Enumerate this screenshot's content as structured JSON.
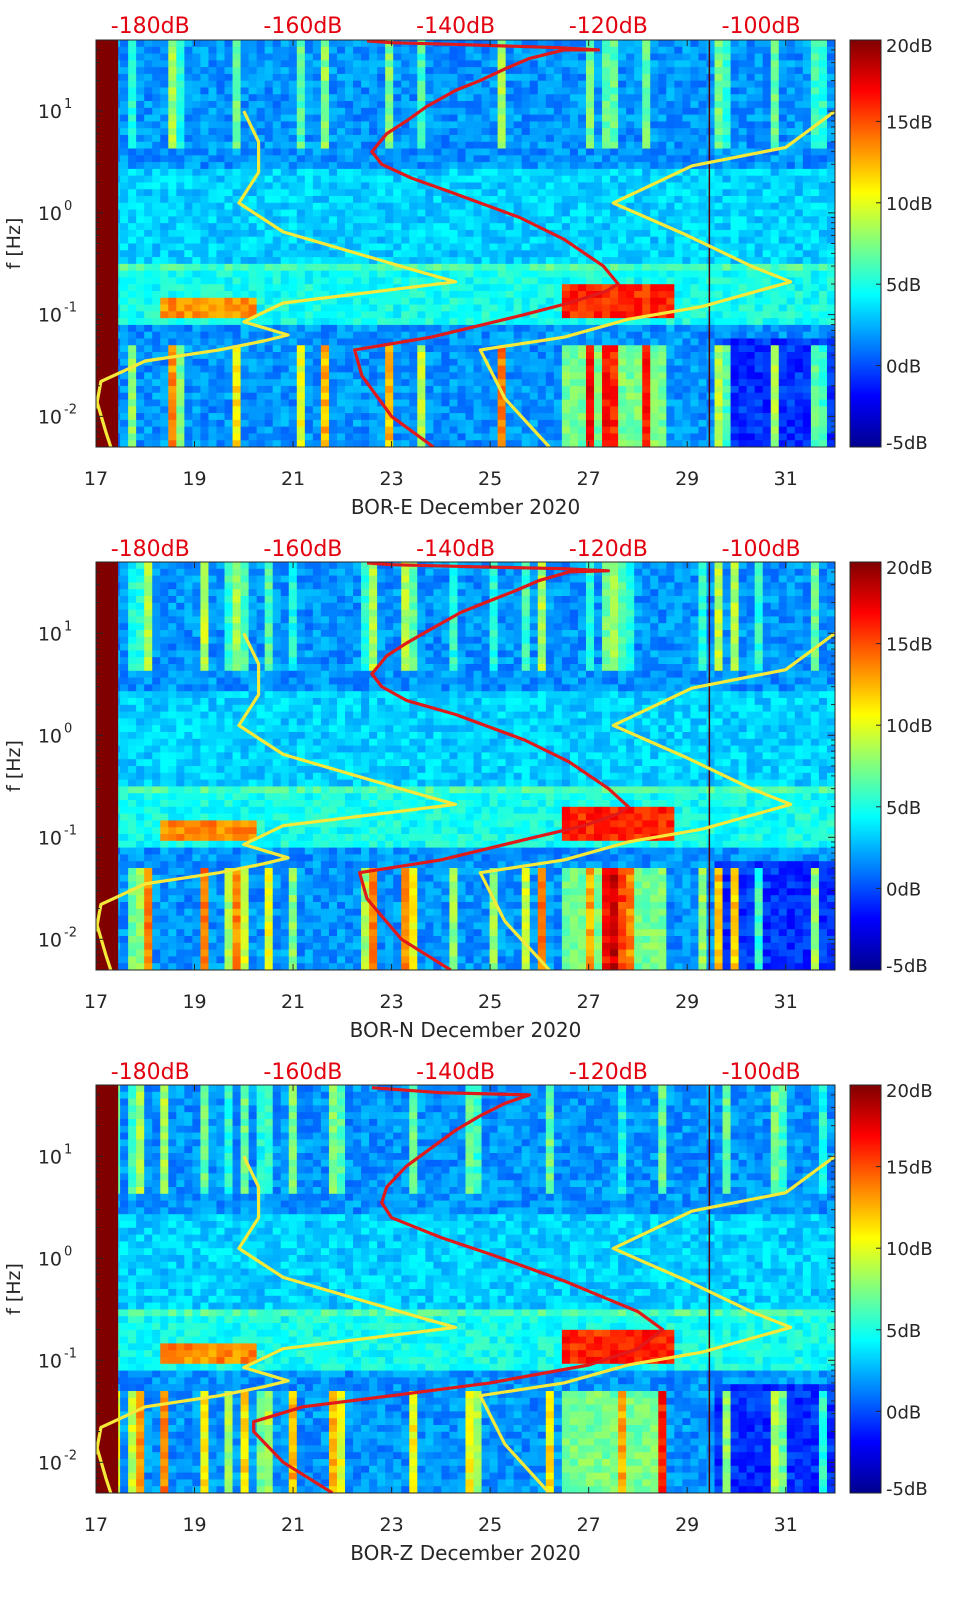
{
  "colors": {
    "red_curve": "#e0191b",
    "yellow_curve": "#f5e93a",
    "top_label": "#e3000f",
    "axis_text": "#262626",
    "colormap": [
      "#00008f",
      "#0000ff",
      "#0080ff",
      "#00ffff",
      "#80ff80",
      "#ffff00",
      "#ff8000",
      "#ff0000",
      "#800000"
    ]
  },
  "chart_data": [
    {
      "type": "heatmap",
      "title": "",
      "xlabel": "BOR-E December 2020",
      "ylabel": "f [Hz]",
      "xlim": [
        17,
        32
      ],
      "ylim": [
        0.005,
        50
      ],
      "yscale": "log",
      "x_ticks": [
        17,
        19,
        21,
        23,
        25,
        27,
        29,
        31
      ],
      "x_tick_labels": [
        "17",
        "19",
        "21",
        "23",
        "25",
        "27",
        "29",
        "31"
      ],
      "y_ticks": [
        0.01,
        0.1,
        1,
        10
      ],
      "y_tick_labels": [
        {
          "base": "10",
          "exp": "-2"
        },
        {
          "base": "10",
          "exp": "-1"
        },
        {
          "base": "10",
          "exp": "0"
        },
        {
          "base": "10",
          "exp": "1"
        }
      ],
      "top_axis_labels": [
        {
          "label": "-180dB",
          "x": 18.1
        },
        {
          "label": "-160dB",
          "x": 21.2
        },
        {
          "label": "-140dB",
          "x": 24.3
        },
        {
          "label": "-120dB",
          "x": 27.4
        },
        {
          "label": "-100dB",
          "x": 30.5
        }
      ],
      "colorbar": {
        "ticks": [
          -5,
          0,
          5,
          10,
          15,
          20
        ],
        "labels": [
          "-5dB",
          "0dB",
          "5dB",
          "10dB",
          "15dB",
          "20dB"
        ],
        "range": [
          -5,
          20
        ]
      },
      "series": [
        {
          "name": "red spectral curve",
          "color": "red",
          "points": [
            [
              23.85,
              0.005
            ],
            [
              23.0,
              0.01
            ],
            [
              22.4,
              0.025
            ],
            [
              22.25,
              0.045
            ],
            [
              23.8,
              0.06
            ],
            [
              25.7,
              0.1
            ],
            [
              26.6,
              0.13
            ],
            [
              27.35,
              0.17
            ],
            [
              27.6,
              0.2
            ],
            [
              27.3,
              0.3
            ],
            [
              26.5,
              0.55
            ],
            [
              25.6,
              0.9
            ],
            [
              24.2,
              1.6
            ],
            [
              23.4,
              2.2
            ],
            [
              22.8,
              3
            ],
            [
              22.6,
              4
            ],
            [
              22.9,
              6
            ],
            [
              23.3,
              8
            ],
            [
              23.7,
              11
            ],
            [
              24.3,
              16
            ],
            [
              24.8,
              20
            ],
            [
              25.3,
              26
            ],
            [
              25.8,
              33
            ],
            [
              26.5,
              40
            ],
            [
              27.2,
              40
            ],
            [
              26.4,
              42
            ],
            [
              24.5,
              45
            ],
            [
              23.0,
              47
            ],
            [
              22.5,
              49
            ]
          ]
        },
        {
          "name": "yellow upper curve",
          "color": "yellow",
          "points": [
            [
              17.0,
              0.012
            ],
            [
              17.1,
              0.022
            ],
            [
              18.0,
              0.035
            ],
            [
              19.5,
              0.045
            ],
            [
              20.4,
              0.055
            ],
            [
              20.9,
              0.063
            ],
            [
              20.0,
              0.085
            ],
            [
              20.8,
              0.13
            ],
            [
              24.3,
              0.21
            ],
            [
              23.5,
              0.27
            ],
            [
              20.8,
              0.65
            ],
            [
              19.9,
              1.25
            ],
            [
              20.3,
              2.5
            ],
            [
              20.3,
              5
            ],
            [
              20.0,
              10
            ]
          ]
        },
        {
          "name": "yellow lower curve",
          "color": "yellow",
          "points": [
            [
              17.0,
              0.015
            ],
            [
              17.2,
              0.007
            ],
            [
              17.3,
              0.005
            ]
          ]
        },
        {
          "name": "yellow right curve",
          "color": "yellow",
          "points": [
            [
              26.2,
              0.005
            ],
            [
              25.3,
              0.015
            ],
            [
              24.8,
              0.045
            ],
            [
              26.5,
              0.06
            ],
            [
              27.8,
              0.09
            ],
            [
              29.3,
              0.12
            ],
            [
              31.1,
              0.21
            ],
            [
              30.3,
              0.3
            ],
            [
              29.0,
              0.6
            ],
            [
              27.5,
              1.25
            ],
            [
              29.1,
              2.9
            ],
            [
              31.0,
              4.4
            ],
            [
              32.0,
              10
            ]
          ]
        }
      ]
    },
    {
      "type": "heatmap",
      "title": "",
      "xlabel": "BOR-N December 2020",
      "ylabel": "f [Hz]",
      "xlim": [
        17,
        32
      ],
      "ylim": [
        0.005,
        50
      ],
      "yscale": "log",
      "x_ticks": [
        17,
        19,
        21,
        23,
        25,
        27,
        29,
        31
      ],
      "x_tick_labels": [
        "17",
        "19",
        "21",
        "23",
        "25",
        "27",
        "29",
        "31"
      ],
      "y_ticks": [
        0.01,
        0.1,
        1,
        10
      ],
      "y_tick_labels": [
        {
          "base": "10",
          "exp": "-2"
        },
        {
          "base": "10",
          "exp": "-1"
        },
        {
          "base": "10",
          "exp": "0"
        },
        {
          "base": "10",
          "exp": "1"
        }
      ],
      "top_axis_labels": [
        {
          "label": "-180dB",
          "x": 18.1
        },
        {
          "label": "-160dB",
          "x": 21.2
        },
        {
          "label": "-140dB",
          "x": 24.3
        },
        {
          "label": "-120dB",
          "x": 27.4
        },
        {
          "label": "-100dB",
          "x": 30.5
        }
      ],
      "colorbar": {
        "ticks": [
          -5,
          0,
          5,
          10,
          15,
          20
        ],
        "labels": [
          "-5dB",
          "0dB",
          "5dB",
          "10dB",
          "15dB",
          "20dB"
        ],
        "range": [
          -5,
          20
        ]
      },
      "series": [
        {
          "name": "red spectral curve",
          "color": "red",
          "points": [
            [
              24.2,
              0.005
            ],
            [
              23.2,
              0.01
            ],
            [
              22.5,
              0.025
            ],
            [
              22.35,
              0.045
            ],
            [
              24.0,
              0.06
            ],
            [
              25.9,
              0.1
            ],
            [
              26.9,
              0.13
            ],
            [
              27.6,
              0.17
            ],
            [
              27.8,
              0.2
            ],
            [
              27.4,
              0.3
            ],
            [
              26.6,
              0.55
            ],
            [
              25.7,
              0.9
            ],
            [
              24.3,
              1.6
            ],
            [
              23.3,
              2.2
            ],
            [
              22.8,
              3
            ],
            [
              22.6,
              4
            ],
            [
              22.9,
              6
            ],
            [
              23.3,
              8
            ],
            [
              23.8,
              11
            ],
            [
              24.4,
              16
            ],
            [
              24.9,
              20
            ],
            [
              25.5,
              26
            ],
            [
              26.0,
              33
            ],
            [
              26.6,
              40
            ],
            [
              27.4,
              41
            ],
            [
              26.5,
              43
            ],
            [
              24.6,
              45
            ],
            [
              23.0,
              47
            ],
            [
              22.5,
              49
            ]
          ]
        },
        {
          "name": "yellow upper curve",
          "color": "yellow",
          "points": [
            [
              17.0,
              0.012
            ],
            [
              17.1,
              0.022
            ],
            [
              18.0,
              0.035
            ],
            [
              19.5,
              0.045
            ],
            [
              20.4,
              0.055
            ],
            [
              20.9,
              0.063
            ],
            [
              20.0,
              0.085
            ],
            [
              20.8,
              0.13
            ],
            [
              24.3,
              0.21
            ],
            [
              23.5,
              0.27
            ],
            [
              20.8,
              0.65
            ],
            [
              19.9,
              1.25
            ],
            [
              20.3,
              2.5
            ],
            [
              20.3,
              5
            ],
            [
              20.0,
              10
            ]
          ]
        },
        {
          "name": "yellow lower curve",
          "color": "yellow",
          "points": [
            [
              17.0,
              0.015
            ],
            [
              17.2,
              0.007
            ],
            [
              17.3,
              0.005
            ]
          ]
        },
        {
          "name": "yellow right curve",
          "color": "yellow",
          "points": [
            [
              26.2,
              0.005
            ],
            [
              25.3,
              0.015
            ],
            [
              24.8,
              0.045
            ],
            [
              26.5,
              0.06
            ],
            [
              27.8,
              0.09
            ],
            [
              29.3,
              0.12
            ],
            [
              31.1,
              0.21
            ],
            [
              30.3,
              0.3
            ],
            [
              29.0,
              0.6
            ],
            [
              27.5,
              1.25
            ],
            [
              29.1,
              2.9
            ],
            [
              31.0,
              4.4
            ],
            [
              32.0,
              10
            ]
          ]
        }
      ]
    },
    {
      "type": "heatmap",
      "title": "",
      "xlabel": "BOR-Z December 2020",
      "ylabel": "f [Hz]",
      "xlim": [
        17,
        32
      ],
      "ylim": [
        0.005,
        50
      ],
      "yscale": "log",
      "x_ticks": [
        17,
        19,
        21,
        23,
        25,
        27,
        29,
        31
      ],
      "x_tick_labels": [
        "17",
        "19",
        "21",
        "23",
        "25",
        "27",
        "29",
        "31"
      ],
      "y_ticks": [
        0.01,
        0.1,
        1,
        10
      ],
      "y_tick_labels": [
        {
          "base": "10",
          "exp": "-2"
        },
        {
          "base": "10",
          "exp": "-1"
        },
        {
          "base": "10",
          "exp": "0"
        },
        {
          "base": "10",
          "exp": "1"
        }
      ],
      "top_axis_labels": [
        {
          "label": "-180dB",
          "x": 18.1
        },
        {
          "label": "-160dB",
          "x": 21.2
        },
        {
          "label": "-140dB",
          "x": 24.3
        },
        {
          "label": "-120dB",
          "x": 27.4
        },
        {
          "label": "-100dB",
          "x": 30.5
        }
      ],
      "colorbar": {
        "ticks": [
          -5,
          0,
          5,
          10,
          15,
          20
        ],
        "labels": [
          "-5dB",
          "0dB",
          "5dB",
          "10dB",
          "15dB",
          "20dB"
        ],
        "range": [
          -5,
          20
        ]
      },
      "series": [
        {
          "name": "red spectral curve",
          "color": "red",
          "points": [
            [
              21.8,
              0.005
            ],
            [
              20.8,
              0.01
            ],
            [
              20.2,
              0.02
            ],
            [
              20.2,
              0.025
            ],
            [
              21.2,
              0.035
            ],
            [
              23.0,
              0.045
            ],
            [
              25.0,
              0.06
            ],
            [
              27.0,
              0.09
            ],
            [
              28.0,
              0.13
            ],
            [
              28.5,
              0.2
            ],
            [
              28.0,
              0.3
            ],
            [
              26.5,
              0.6
            ],
            [
              25.0,
              1.1
            ],
            [
              24.0,
              1.6
            ],
            [
              23.0,
              2.5
            ],
            [
              22.8,
              3.5
            ],
            [
              22.9,
              5
            ],
            [
              23.3,
              8
            ],
            [
              23.8,
              12
            ],
            [
              24.3,
              18
            ],
            [
              24.8,
              25
            ],
            [
              25.3,
              33
            ],
            [
              25.8,
              40
            ],
            [
              24.0,
              42
            ],
            [
              22.6,
              47
            ]
          ]
        },
        {
          "name": "yellow upper curve",
          "color": "yellow",
          "points": [
            [
              17.0,
              0.012
            ],
            [
              17.1,
              0.022
            ],
            [
              18.0,
              0.035
            ],
            [
              19.5,
              0.045
            ],
            [
              20.4,
              0.055
            ],
            [
              20.9,
              0.063
            ],
            [
              20.0,
              0.085
            ],
            [
              20.8,
              0.13
            ],
            [
              24.3,
              0.21
            ],
            [
              23.5,
              0.27
            ],
            [
              20.8,
              0.65
            ],
            [
              19.9,
              1.25
            ],
            [
              20.3,
              2.5
            ],
            [
              20.3,
              5
            ],
            [
              20.0,
              10
            ]
          ]
        },
        {
          "name": "yellow lower curve",
          "color": "yellow",
          "points": [
            [
              17.0,
              0.015
            ],
            [
              17.2,
              0.007
            ],
            [
              17.3,
              0.005
            ]
          ]
        },
        {
          "name": "yellow right curve",
          "color": "yellow",
          "points": [
            [
              26.2,
              0.005
            ],
            [
              25.3,
              0.015
            ],
            [
              24.8,
              0.045
            ],
            [
              26.5,
              0.06
            ],
            [
              27.8,
              0.09
            ],
            [
              29.3,
              0.12
            ],
            [
              31.1,
              0.21
            ],
            [
              30.3,
              0.3
            ],
            [
              29.0,
              0.6
            ],
            [
              27.5,
              1.25
            ],
            [
              29.1,
              2.9
            ],
            [
              31.0,
              4.4
            ],
            [
              32.0,
              10
            ]
          ]
        }
      ]
    }
  ]
}
